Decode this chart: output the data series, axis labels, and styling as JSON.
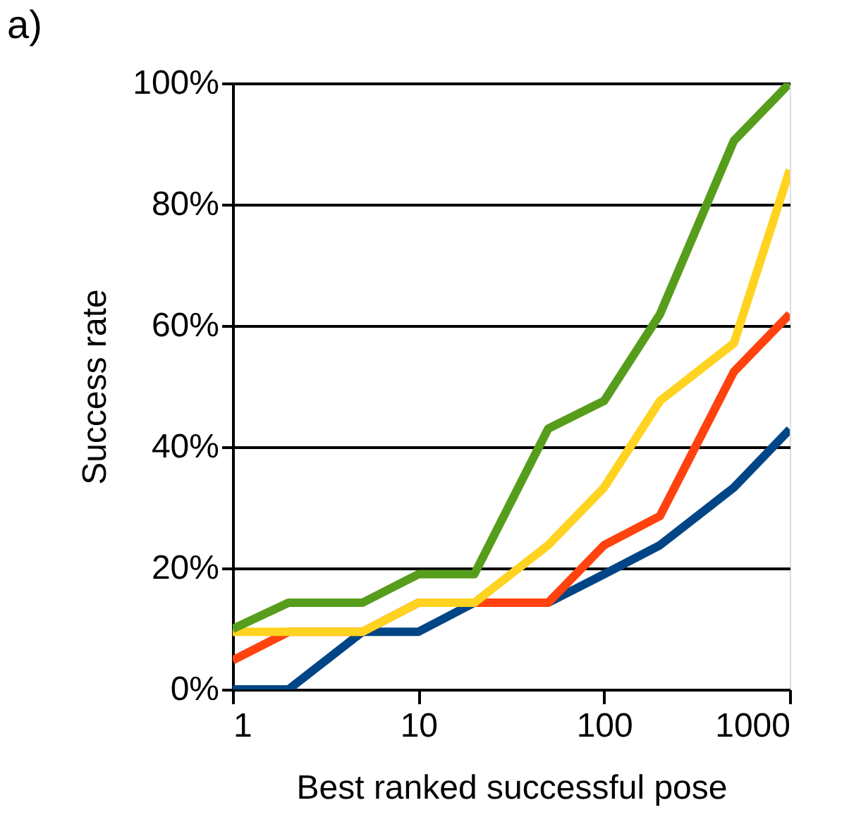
{
  "chart_data": {
    "type": "line",
    "title": "a)",
    "xlabel": "Best ranked successful pose",
    "ylabel": "Success rate",
    "x": [
      1,
      2,
      5,
      10,
      20,
      50,
      100,
      200,
      500,
      1000
    ],
    "series": [
      {
        "color": "#004586",
        "values": [
          0,
          0,
          9.5,
          9.5,
          14.3,
          14.3,
          19,
          23.8,
          33.3,
          42.9
        ]
      },
      {
        "color": "#ff420e",
        "values": [
          4.8,
          9.5,
          9.5,
          14.3,
          14.3,
          14.3,
          23.8,
          28.6,
          52.4,
          61.9
        ]
      },
      {
        "color": "#ffd320",
        "values": [
          9.5,
          9.5,
          9.5,
          14.3,
          14.3,
          23.8,
          33.3,
          47.6,
          57.1,
          85.7
        ]
      },
      {
        "color": "#579d1c",
        "values": [
          10,
          14.3,
          14.3,
          19,
          19,
          43,
          47.6,
          61.9,
          90.5,
          100
        ]
      }
    ],
    "log": "x",
    "xlim": [
      1,
      1000
    ],
    "xticks": [
      1,
      10,
      100,
      1000
    ],
    "ylim": [
      0,
      100
    ],
    "yticks": [
      {
        "value": 0,
        "label": "0%"
      },
      {
        "value": 20,
        "label": "20%"
      },
      {
        "value": 40,
        "label": "40%"
      },
      {
        "value": 60,
        "label": "60%"
      },
      {
        "value": 80,
        "label": "80%"
      },
      {
        "value": 100,
        "label": "100%"
      }
    ],
    "grid": "y",
    "legend": false,
    "marker": "none",
    "line_style": "solid"
  }
}
